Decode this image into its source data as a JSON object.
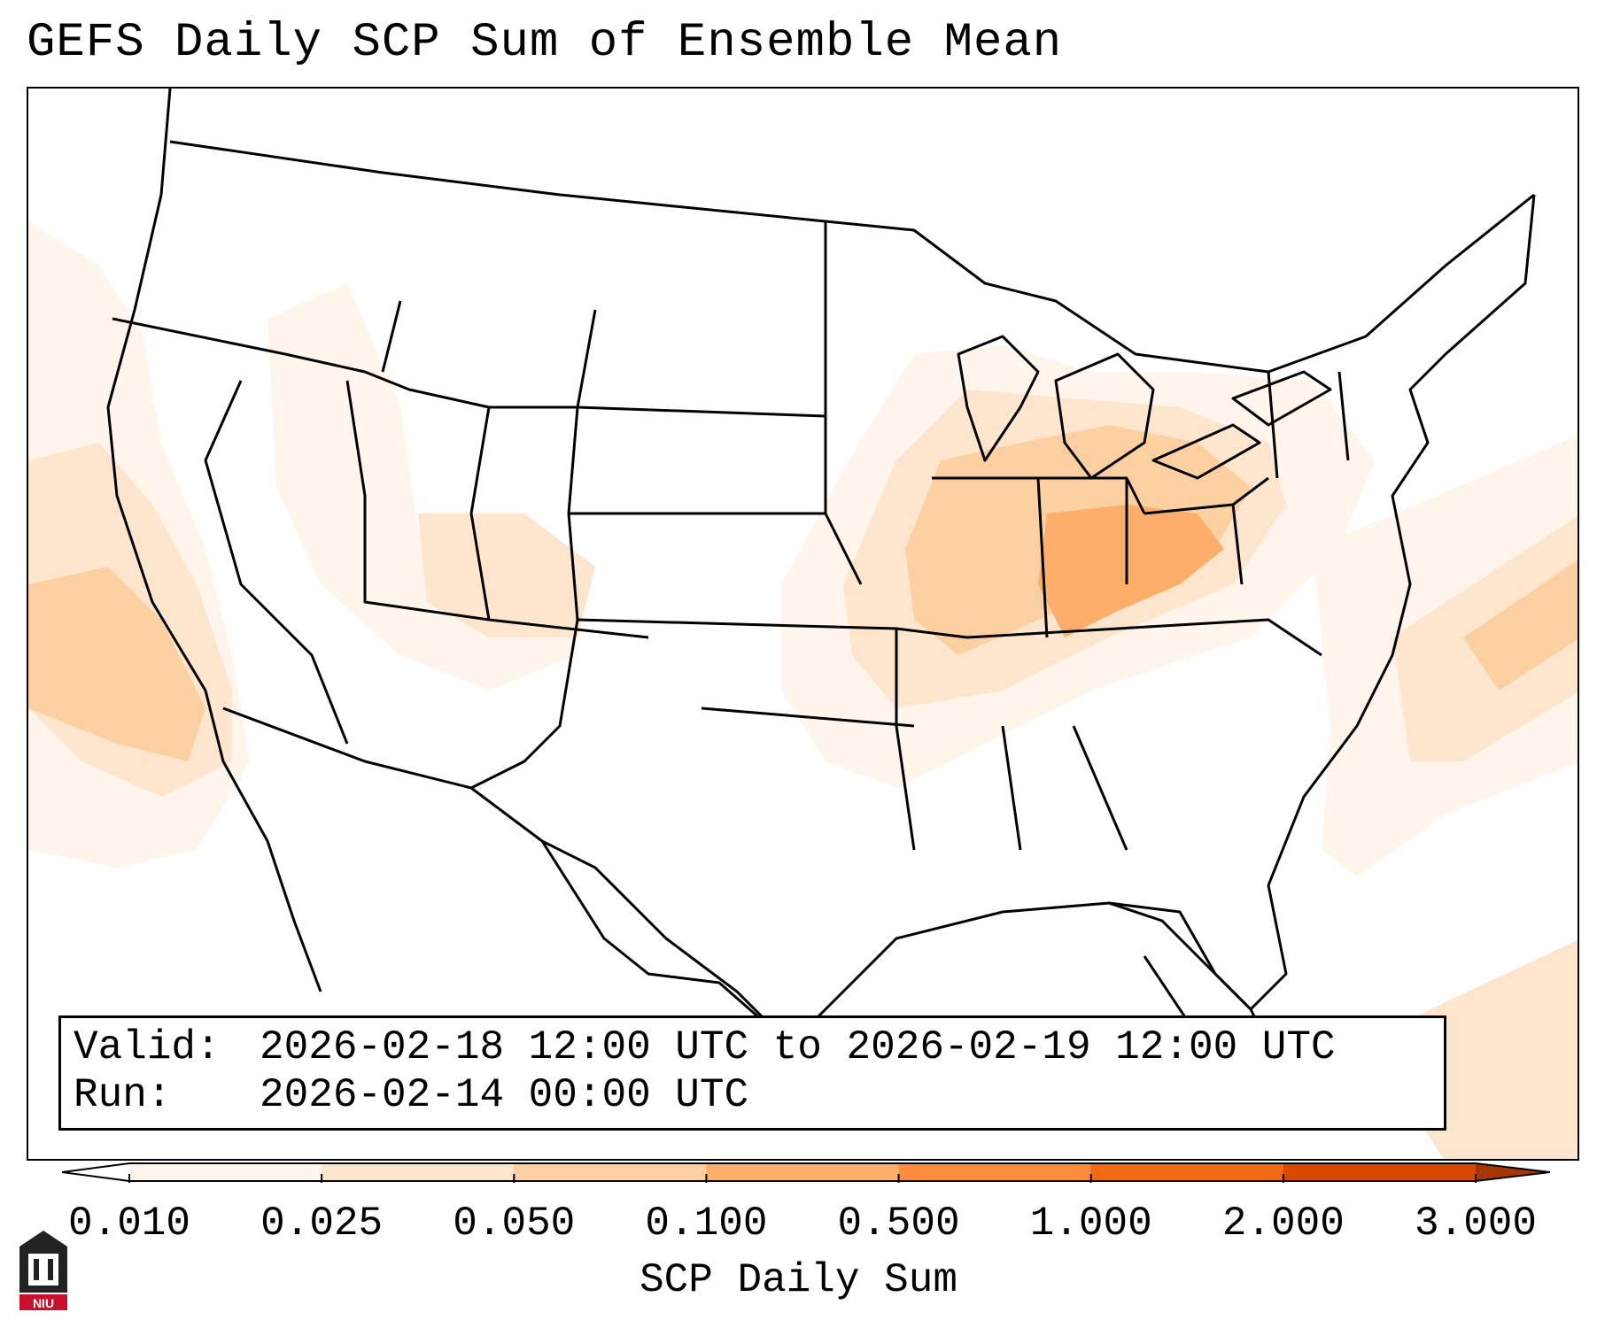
{
  "title": "GEFS Daily SCP Sum of Ensemble Mean",
  "info": {
    "valid_label": "Valid:",
    "valid_value": "2026-02-18 12:00 UTC to 2026-02-19 12:00 UTC",
    "run_label": "Run:",
    "run_value": "2026-02-14 00:00 UTC"
  },
  "colorbar": {
    "label": "SCP Daily Sum",
    "ticks": [
      "0.010",
      "0.025",
      "0.050",
      "0.100",
      "0.500",
      "1.000",
      "2.000",
      "3.000"
    ],
    "colors": [
      "#fff5eb",
      "#fee6ce",
      "#fdd0a2",
      "#fdae6b",
      "#fd8d3c",
      "#f16913",
      "#d94801",
      "#a63603"
    ],
    "extend": "both"
  },
  "map": {
    "region": "Continental United States",
    "projection": "Lambert Conformal",
    "overlay": "state boundaries and coastlines"
  },
  "logo": {
    "text": "NIU",
    "color": "#c8102e"
  }
}
